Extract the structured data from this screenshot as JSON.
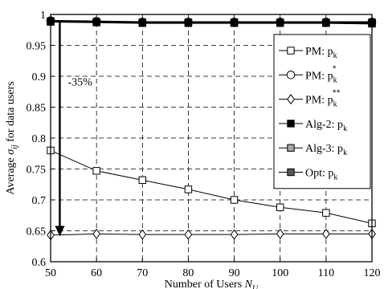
{
  "chart_data": {
    "type": "line",
    "xlabel": "Number of Users",
    "xlabel_var": "N",
    "xlabel_sub": "U",
    "ylabel": "Average",
    "ylabel_var": "σ",
    "ylabel_sub": "ij",
    "ylabel_tail": "for data users",
    "xlim": [
      50,
      120
    ],
    "ylim": [
      0.6,
      1.0
    ],
    "x": [
      50,
      60,
      70,
      80,
      90,
      100,
      110,
      120
    ],
    "x_ticks": [
      "50",
      "60",
      "70",
      "80",
      "90",
      "100",
      "110",
      "120"
    ],
    "y_ticks": [
      "0.6",
      "0.65",
      "0.7",
      "0.75",
      "0.8",
      "0.85",
      "0.9",
      "0.95",
      "1"
    ],
    "grid": true,
    "legend_position": "right",
    "series": [
      {
        "name": "PM: p",
        "name_sub": "k",
        "name_sup": "",
        "marker": "square-open",
        "color": "#000000",
        "values": [
          0.78,
          0.747,
          0.732,
          0.717,
          0.7,
          0.688,
          0.679,
          0.662
        ]
      },
      {
        "name": "PM: p",
        "name_sub": "k",
        "name_sup": "*",
        "marker": "circle-open",
        "color": "#000000",
        "values": [
          0.99,
          0.989,
          0.988,
          0.988,
          0.988,
          0.988,
          0.988,
          0.988
        ]
      },
      {
        "name": "PM: p",
        "name_sub": "k",
        "name_sup": "**",
        "marker": "diamond-open",
        "color": "#000000",
        "values": [
          0.643,
          0.645,
          0.644,
          0.644,
          0.644,
          0.645,
          0.645,
          0.645
        ]
      },
      {
        "name": "Alg-2: p",
        "name_sub": "k",
        "name_sup": "",
        "marker": "square-filled",
        "color": "#000000",
        "values": [
          0.989,
          0.988,
          0.987,
          0.987,
          0.987,
          0.987,
          0.987,
          0.987
        ]
      },
      {
        "name": "Alg-3: p",
        "name_sub": "k",
        "name_sup": "",
        "marker": "square-gray",
        "color": "#999999",
        "values": [
          0.989,
          0.988,
          0.987,
          0.987,
          0.987,
          0.987,
          0.987,
          0.987
        ]
      },
      {
        "name": "Opt: p",
        "name_sub": "k",
        "name_sup": "",
        "marker": "square-dark",
        "color": "#555555",
        "values": [
          0.988,
          0.987,
          0.986,
          0.986,
          0.986,
          0.986,
          0.986,
          0.985
        ]
      }
    ],
    "annotation": {
      "text": "-35%",
      "arrow_x": 52,
      "arrow_from": 0.99,
      "arrow_to": 0.641
    }
  }
}
